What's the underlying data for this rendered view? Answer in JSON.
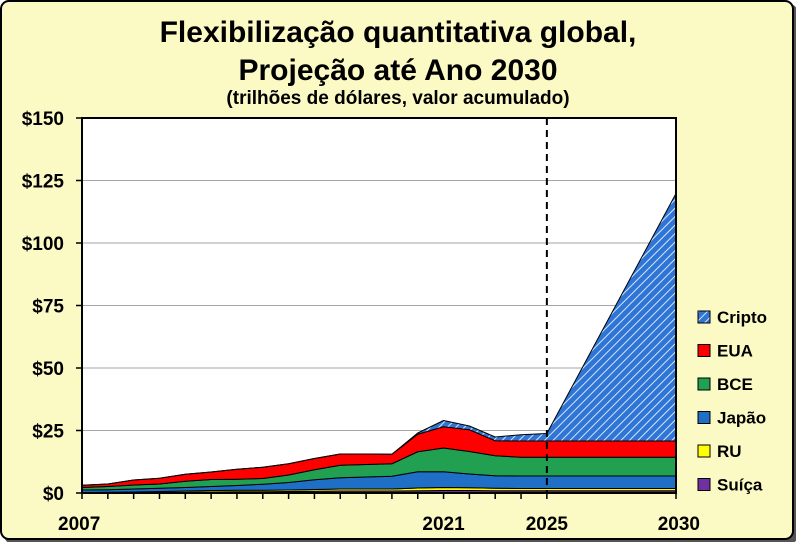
{
  "chart_data": {
    "type": "area",
    "stacked": true,
    "title": "Flexibilização quantitativa global,",
    "title2": "Projeção até Ano 2030",
    "subtitle": "(trilhões de dólares, valor acumulado)",
    "xlabel": "",
    "ylabel": "",
    "x": [
      2007,
      2008,
      2009,
      2010,
      2011,
      2012,
      2013,
      2014,
      2015,
      2016,
      2017,
      2018,
      2019,
      2020,
      2021,
      2022,
      2023,
      2024,
      2025,
      2030
    ],
    "x_tick_labels": [
      "2007",
      "2021",
      "2025",
      "2030"
    ],
    "x_tick_values": [
      2007,
      2021,
      2025,
      2030
    ],
    "ylim": [
      0,
      150
    ],
    "y_tick_values": [
      0,
      25,
      50,
      75,
      100,
      125,
      150
    ],
    "y_tick_labels": [
      "$0",
      "$25",
      "$50",
      "$75",
      "$100",
      "$125",
      "$150"
    ],
    "grid": true,
    "projection_marker_x": 2025,
    "legend_position": "right",
    "series": [
      {
        "name": "Suíça",
        "color": "#7030a0",
        "values": [
          0.1,
          0.1,
          0.1,
          0.2,
          0.3,
          0.4,
          0.5,
          0.5,
          0.6,
          0.7,
          0.8,
          0.8,
          0.8,
          0.9,
          1.0,
          1.0,
          0.9,
          0.9,
          0.9,
          0.9
        ]
      },
      {
        "name": "RU",
        "color": "#ffff00",
        "values": [
          0.1,
          0.2,
          0.3,
          0.4,
          0.5,
          0.6,
          0.6,
          0.6,
          0.6,
          0.7,
          0.8,
          0.8,
          0.8,
          1.1,
          1.2,
          1.1,
          1.0,
          0.9,
          0.9,
          0.9
        ]
      },
      {
        "name": "Japão",
        "color": "#1f6fc6",
        "values": [
          1.0,
          1.0,
          1.2,
          1.3,
          1.4,
          1.6,
          1.9,
          2.4,
          3.0,
          3.9,
          4.5,
          4.8,
          5.1,
          6.5,
          6.3,
          5.5,
          5.0,
          5.0,
          5.0,
          5.0
        ]
      },
      {
        "name": "BCE",
        "color": "#20a050",
        "values": [
          1.0,
          1.3,
          1.6,
          1.7,
          2.5,
          2.8,
          2.5,
          2.3,
          3.0,
          4.0,
          5.0,
          5.0,
          5.0,
          8.0,
          9.5,
          9.0,
          8.0,
          7.5,
          7.5,
          7.5
        ]
      },
      {
        "name": "EUA",
        "color": "#ff0000",
        "values": [
          0.9,
          1.0,
          2.0,
          2.3,
          2.8,
          3.0,
          4.0,
          4.5,
          4.5,
          4.5,
          4.5,
          4.2,
          3.8,
          7.0,
          8.5,
          8.7,
          6.0,
          6.5,
          6.5,
          6.5
        ]
      },
      {
        "name": "Cripto",
        "color": "#2e75d6",
        "values": [
          0,
          0,
          0,
          0,
          0,
          0,
          0,
          0,
          0,
          0,
          0,
          0,
          0,
          0.5,
          2.5,
          1.5,
          1.5,
          2.5,
          3.0,
          99.0
        ]
      }
    ]
  }
}
